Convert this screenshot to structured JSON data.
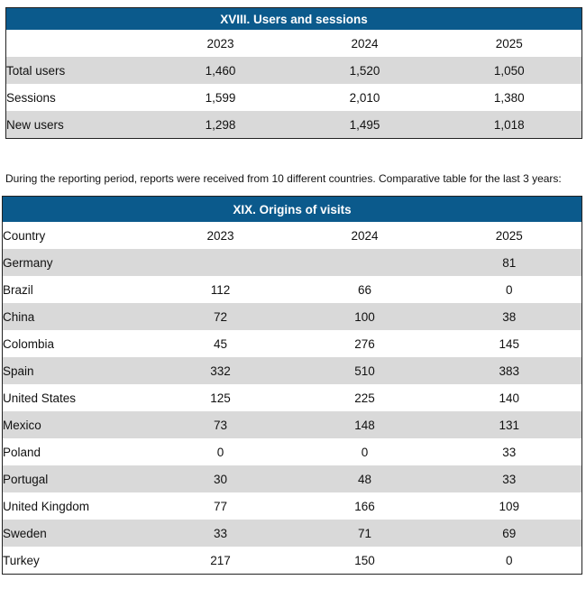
{
  "users_table": {
    "title": "XVIII. Users and sessions",
    "columns": [
      "",
      "2023",
      "2024",
      "2025"
    ],
    "rows": [
      [
        "Total users",
        "1,460",
        "1,520",
        "1,050"
      ],
      [
        "Sessions",
        "1,599",
        "2,010",
        "1,380"
      ],
      [
        "New users",
        "1,298",
        "1,495",
        "1,018"
      ]
    ]
  },
  "paragraph": "During the reporting period, reports were received from 10 different countries. Comparative table for the last 3 years:",
  "origins_table": {
    "title": "XIX. Origins of visits",
    "columns": [
      "Country",
      "2023",
      "2024",
      "2025"
    ],
    "rows": [
      [
        "Germany",
        "",
        "",
        "81"
      ],
      [
        "Brazil",
        "112",
        "66",
        "0"
      ],
      [
        "China",
        "72",
        "100",
        "38"
      ],
      [
        "Colombia",
        "45",
        "276",
        "145"
      ],
      [
        "Spain",
        "332",
        "510",
        "383"
      ],
      [
        "United States",
        "125",
        "225",
        "140"
      ],
      [
        "Mexico",
        "73",
        "148",
        "131"
      ],
      [
        "Poland",
        "0",
        "0",
        "33"
      ],
      [
        "Portugal",
        "30",
        "48",
        "33"
      ],
      [
        "United Kingdom",
        "77",
        "166",
        "109"
      ],
      [
        "Sweden",
        "33",
        "71",
        "69"
      ],
      [
        "Turkey",
        "217",
        "150",
        "0"
      ]
    ]
  },
  "colors": {
    "header_fill": "#0b5a8c",
    "row_shade": "#d9d9d9"
  }
}
